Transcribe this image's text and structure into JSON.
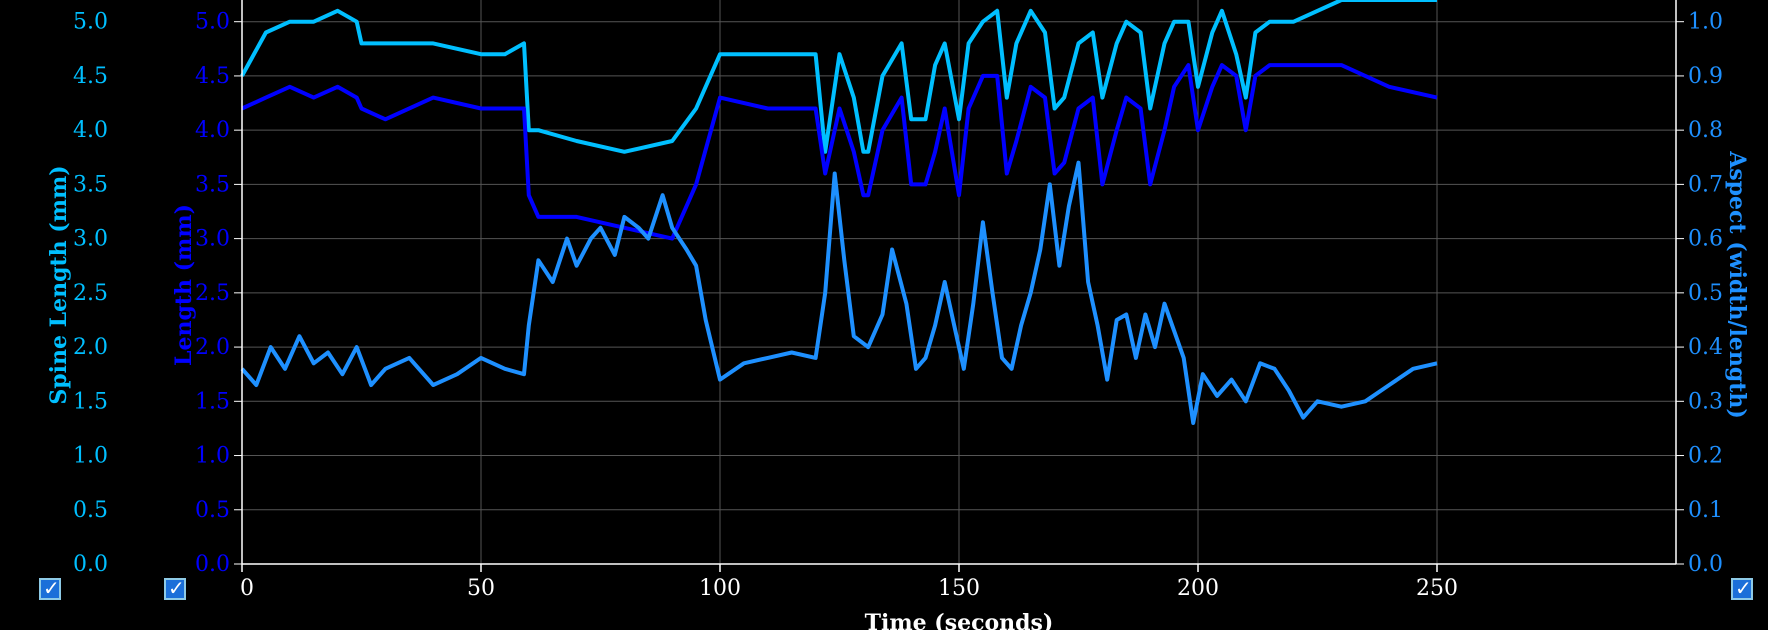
{
  "chart_data": {
    "type": "line",
    "x_axis": {
      "label": "Time (seconds)",
      "range": [
        0,
        300
      ],
      "ticks": [
        0,
        50,
        100,
        150,
        200,
        250
      ]
    },
    "y_axes": [
      {
        "id": "spine",
        "label": "Spine Length (mm)",
        "color": "#00bfff",
        "side": "left",
        "range": [
          0,
          5.2
        ],
        "ticks": [
          "0.0",
          "0.5",
          "1.0",
          "1.5",
          "2.0",
          "2.5",
          "3.0",
          "3.5",
          "4.0",
          "4.5",
          "5.0"
        ]
      },
      {
        "id": "length",
        "label": "Length (mm)",
        "color": "#0000ff",
        "side": "left-inner",
        "range": [
          0,
          5.2
        ],
        "ticks": [
          "0.0",
          "0.5",
          "1.0",
          "1.5",
          "2.0",
          "2.5",
          "3.0",
          "3.5",
          "4.0",
          "4.5",
          "5.0"
        ]
      },
      {
        "id": "aspect",
        "label": "Aspect (width/length)",
        "color": "#1e90ff",
        "side": "right",
        "range": [
          0,
          1.04
        ],
        "ticks": [
          "0.0",
          "0.1",
          "0.2",
          "0.3",
          "0.4",
          "0.5",
          "0.6",
          "0.7",
          "0.8",
          "0.9",
          "1.0"
        ]
      }
    ],
    "series": [
      {
        "axis": "spine",
        "color": "#00bfff",
        "x": [
          0,
          5,
          10,
          15,
          20,
          24,
          25,
          30,
          40,
          50,
          55,
          59,
          60,
          62,
          70,
          80,
          90,
          95,
          100,
          110,
          120,
          122,
          125,
          128,
          130,
          131,
          134,
          138,
          140,
          143,
          145,
          147,
          150,
          152,
          155,
          158,
          160,
          162,
          165,
          168,
          170,
          172,
          175,
          178,
          180,
          183,
          185,
          188,
          190,
          193,
          195,
          198,
          200,
          203,
          205,
          208,
          210,
          212,
          215,
          220,
          230,
          240,
          250
        ],
        "y": [
          4.5,
          4.9,
          5.0,
          5.0,
          5.1,
          5.0,
          4.8,
          4.8,
          4.8,
          4.7,
          4.7,
          4.8,
          4.0,
          4.0,
          3.9,
          3.8,
          3.9,
          4.2,
          4.7,
          4.7,
          4.7,
          3.8,
          4.7,
          4.3,
          3.8,
          3.8,
          4.5,
          4.8,
          4.1,
          4.1,
          4.6,
          4.8,
          4.1,
          4.8,
          5.0,
          5.1,
          4.3,
          4.8,
          5.1,
          4.9,
          4.2,
          4.3,
          4.8,
          4.9,
          4.3,
          4.8,
          5.0,
          4.9,
          4.2,
          4.8,
          5.0,
          5.0,
          4.4,
          4.9,
          5.1,
          4.7,
          4.3,
          4.9,
          5.0,
          5.0,
          5.2,
          5.2,
          5.2
        ]
      },
      {
        "axis": "length",
        "color": "#0000ff",
        "x": [
          0,
          5,
          10,
          15,
          20,
          24,
          25,
          30,
          40,
          50,
          55,
          59,
          60,
          62,
          70,
          80,
          90,
          95,
          100,
          110,
          120,
          122,
          125,
          128,
          130,
          131,
          134,
          138,
          140,
          143,
          145,
          147,
          150,
          152,
          155,
          158,
          160,
          162,
          165,
          168,
          170,
          172,
          175,
          178,
          180,
          183,
          185,
          188,
          190,
          193,
          195,
          198,
          200,
          203,
          205,
          208,
          210,
          212,
          215,
          220,
          230,
          240,
          250
        ],
        "y": [
          4.2,
          4.3,
          4.4,
          4.3,
          4.4,
          4.3,
          4.2,
          4.1,
          4.3,
          4.2,
          4.2,
          4.2,
          3.4,
          3.2,
          3.2,
          3.1,
          3.0,
          3.5,
          4.3,
          4.2,
          4.2,
          3.6,
          4.2,
          3.8,
          3.4,
          3.4,
          4.0,
          4.3,
          3.5,
          3.5,
          3.8,
          4.2,
          3.4,
          4.2,
          4.5,
          4.5,
          3.6,
          3.9,
          4.4,
          4.3,
          3.6,
          3.7,
          4.2,
          4.3,
          3.5,
          4.0,
          4.3,
          4.2,
          3.5,
          4.0,
          4.4,
          4.6,
          4.0,
          4.4,
          4.6,
          4.5,
          4.0,
          4.5,
          4.6,
          4.6,
          4.6,
          4.4,
          4.3
        ]
      },
      {
        "axis": "aspect",
        "color": "#1e90ff",
        "x": [
          0,
          3,
          6,
          9,
          12,
          15,
          18,
          21,
          24,
          27,
          30,
          35,
          40,
          45,
          50,
          55,
          59,
          60,
          62,
          65,
          68,
          70,
          73,
          75,
          78,
          80,
          83,
          85,
          88,
          90,
          93,
          95,
          97,
          100,
          105,
          110,
          115,
          120,
          122,
          124,
          126,
          128,
          131,
          134,
          136,
          139,
          141,
          143,
          145,
          147,
          149,
          151,
          153,
          155,
          157,
          159,
          161,
          163,
          165,
          167,
          169,
          171,
          173,
          175,
          177,
          179,
          181,
          183,
          185,
          187,
          189,
          191,
          193,
          195,
          197,
          199,
          201,
          204,
          207,
          210,
          213,
          216,
          219,
          222,
          225,
          230,
          235,
          240,
          245,
          250
        ],
        "y": [
          0.36,
          0.33,
          0.4,
          0.36,
          0.42,
          0.37,
          0.39,
          0.35,
          0.4,
          0.33,
          0.36,
          0.38,
          0.33,
          0.35,
          0.38,
          0.36,
          0.35,
          0.44,
          0.56,
          0.52,
          0.6,
          0.55,
          0.6,
          0.62,
          0.57,
          0.64,
          0.62,
          0.6,
          0.68,
          0.62,
          0.58,
          0.55,
          0.45,
          0.34,
          0.37,
          0.38,
          0.39,
          0.38,
          0.5,
          0.72,
          0.56,
          0.42,
          0.4,
          0.46,
          0.58,
          0.48,
          0.36,
          0.38,
          0.44,
          0.52,
          0.44,
          0.36,
          0.48,
          0.63,
          0.5,
          0.38,
          0.36,
          0.44,
          0.5,
          0.58,
          0.7,
          0.55,
          0.66,
          0.74,
          0.52,
          0.44,
          0.34,
          0.45,
          0.46,
          0.38,
          0.46,
          0.4,
          0.48,
          0.43,
          0.38,
          0.26,
          0.35,
          0.31,
          0.34,
          0.3,
          0.37,
          0.36,
          0.32,
          0.27,
          0.3,
          0.29,
          0.3,
          0.33,
          0.36,
          0.37
        ]
      }
    ]
  }
}
